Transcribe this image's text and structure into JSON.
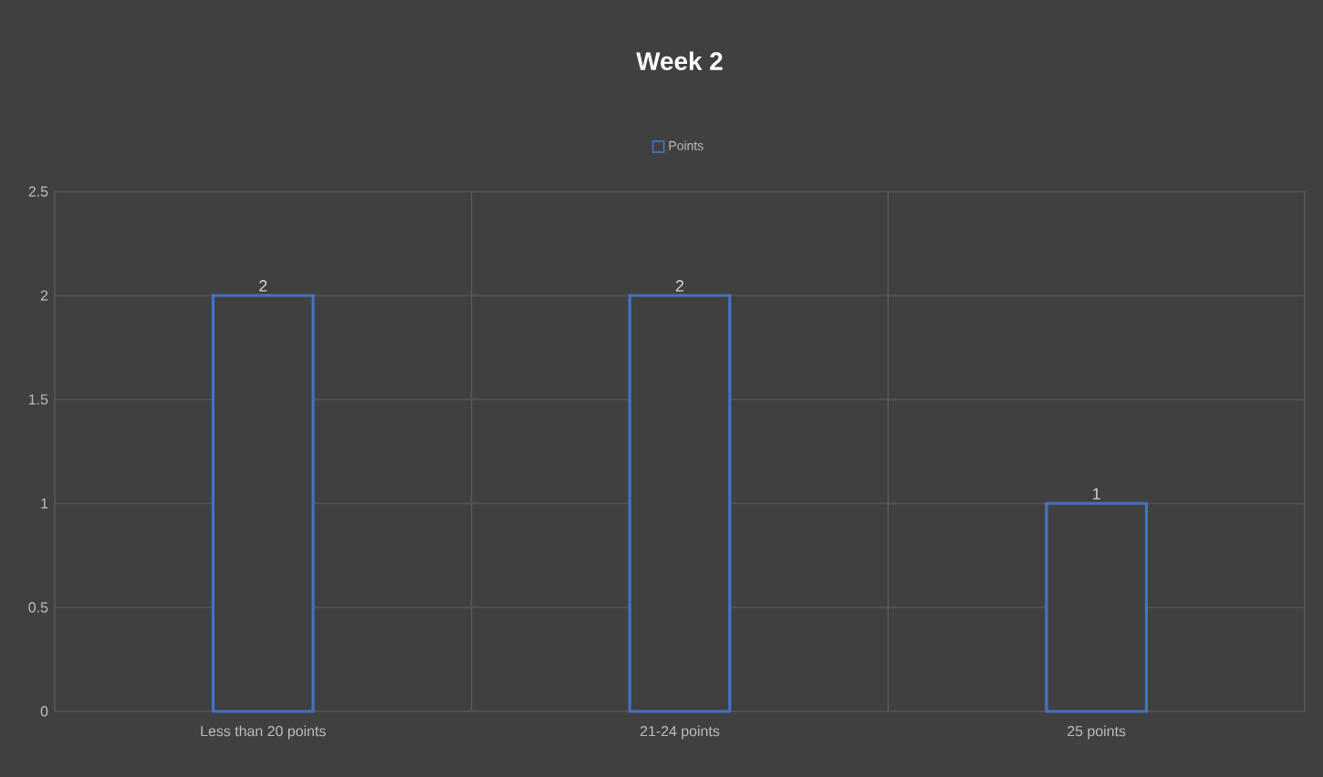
{
  "chart_data": {
    "type": "bar",
    "title": "Week 2",
    "categories": [
      "Less than 20 points",
      "21-24 points",
      "25 points"
    ],
    "series": [
      {
        "name": "Points",
        "color": "#4472c4",
        "values": [
          2,
          2,
          1
        ]
      }
    ],
    "ylim": [
      0,
      2.5
    ],
    "yticks": [
      0,
      0.5,
      1,
      1.5,
      2,
      2.5
    ],
    "grid": true,
    "legend": "top",
    "data_labels": true
  }
}
